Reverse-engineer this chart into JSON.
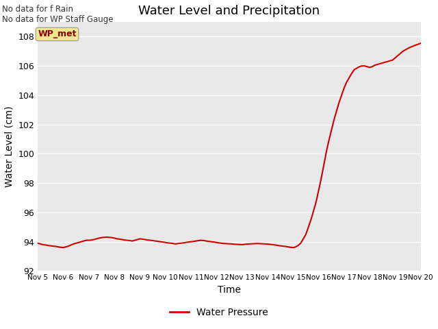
{
  "title": "Water Level and Precipitation",
  "xlabel": "Time",
  "ylabel": "Water Level (cm)",
  "ylim": [
    92,
    109
  ],
  "yticks": [
    92,
    94,
    96,
    98,
    100,
    102,
    104,
    106,
    108
  ],
  "xtick_labels": [
    "Nov 5",
    "Nov 6",
    "Nov 7",
    "Nov 8",
    "Nov 9",
    "Nov 10",
    "Nov 11",
    "Nov 12",
    "Nov 13",
    "Nov 14",
    "Nov 15",
    "Nov 16",
    "Nov 17",
    "Nov 18",
    "Nov 19",
    "Nov 20"
  ],
  "no_data_text1": "No data for f Rain",
  "no_data_text2": "No data for WP Staff Gauge",
  "legend_label": "WP_met",
  "legend_box_color": "#f0e68c",
  "legend_text_color": "#8b0000",
  "line_color": "#cc0000",
  "line_label": "Water Pressure",
  "bg_color": "#e8e8e8",
  "x_values": [
    5.0,
    5.1,
    5.2,
    5.3,
    5.4,
    5.5,
    5.6,
    5.7,
    5.8,
    5.9,
    6.0,
    6.1,
    6.2,
    6.3,
    6.4,
    6.5,
    6.6,
    6.7,
    6.8,
    6.9,
    7.0,
    7.1,
    7.2,
    7.3,
    7.4,
    7.5,
    7.6,
    7.7,
    7.8,
    7.9,
    8.0,
    8.1,
    8.2,
    8.3,
    8.4,
    8.5,
    8.6,
    8.7,
    8.8,
    8.9,
    9.0,
    9.1,
    9.2,
    9.3,
    9.4,
    9.5,
    9.6,
    9.7,
    9.8,
    9.9,
    10.0,
    10.1,
    10.2,
    10.3,
    10.4,
    10.5,
    10.6,
    10.7,
    10.8,
    10.9,
    11.0,
    11.1,
    11.2,
    11.3,
    11.4,
    11.5,
    11.6,
    11.7,
    11.8,
    11.9,
    12.0,
    12.1,
    12.2,
    12.3,
    12.4,
    12.5,
    12.6,
    12.7,
    12.8,
    12.9,
    13.0,
    13.1,
    13.2,
    13.3,
    13.4,
    13.5,
    13.6,
    13.7,
    13.8,
    13.9,
    14.0,
    14.1,
    14.2,
    14.3,
    14.4,
    14.5,
    14.6,
    14.7,
    14.8,
    14.9,
    15.0,
    15.05,
    15.1,
    15.2,
    15.3,
    15.5,
    15.7,
    15.9,
    16.0,
    16.1,
    16.2,
    16.3,
    16.4,
    16.5,
    16.6,
    16.7,
    16.8,
    16.9,
    17.0,
    17.1,
    17.2,
    17.3,
    17.4,
    17.5,
    17.6,
    17.7,
    17.8,
    17.9,
    18.0,
    18.1,
    18.2,
    18.3,
    18.4,
    18.5,
    18.6,
    18.7,
    18.8,
    18.9,
    19.0,
    19.1,
    19.2,
    19.3,
    19.4,
    19.5,
    19.6,
    19.7,
    19.8,
    19.9,
    20.0
  ],
  "y_values": [
    93.9,
    93.85,
    93.8,
    93.78,
    93.75,
    93.72,
    93.7,
    93.68,
    93.65,
    93.62,
    93.6,
    93.65,
    93.7,
    93.78,
    93.85,
    93.9,
    93.95,
    94.0,
    94.05,
    94.1,
    94.1,
    94.12,
    94.15,
    94.2,
    94.25,
    94.28,
    94.3,
    94.32,
    94.3,
    94.28,
    94.25,
    94.2,
    94.18,
    94.15,
    94.12,
    94.1,
    94.08,
    94.05,
    94.1,
    94.15,
    94.2,
    94.18,
    94.15,
    94.12,
    94.1,
    94.08,
    94.05,
    94.03,
    94.0,
    93.98,
    93.95,
    93.92,
    93.9,
    93.88,
    93.85,
    93.88,
    93.9,
    93.92,
    93.95,
    93.98,
    94.0,
    94.02,
    94.05,
    94.08,
    94.1,
    94.08,
    94.05,
    94.02,
    94.0,
    93.98,
    93.95,
    93.92,
    93.9,
    93.88,
    93.87,
    93.86,
    93.85,
    93.83,
    93.82,
    93.81,
    93.8,
    93.82,
    93.84,
    93.85,
    93.86,
    93.87,
    93.88,
    93.87,
    93.86,
    93.85,
    93.84,
    93.82,
    93.8,
    93.78,
    93.75,
    93.72,
    93.7,
    93.68,
    93.65,
    93.62,
    93.6,
    93.62,
    93.65,
    93.75,
    93.9,
    94.5,
    95.5,
    96.7,
    97.5,
    98.3,
    99.2,
    100.1,
    100.9,
    101.6,
    102.3,
    102.9,
    103.5,
    104.0,
    104.5,
    104.9,
    105.2,
    105.5,
    105.75,
    105.85,
    105.95,
    106.0,
    106.0,
    105.95,
    105.9,
    105.95,
    106.05,
    106.1,
    106.15,
    106.2,
    106.25,
    106.3,
    106.35,
    106.4,
    106.55,
    106.7,
    106.85,
    107.0,
    107.1,
    107.2,
    107.28,
    107.35,
    107.42,
    107.48,
    107.55
  ]
}
